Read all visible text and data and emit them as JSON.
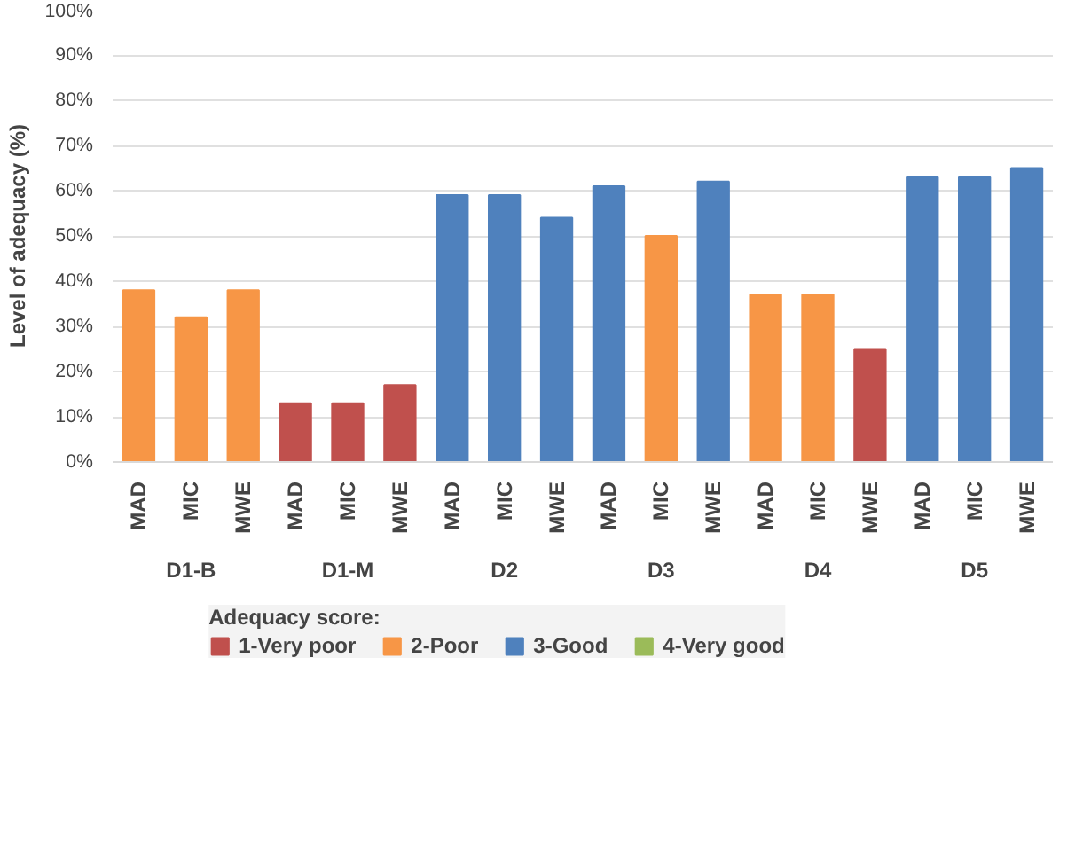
{
  "chart_data": {
    "type": "bar",
    "ylabel": "Level of adequacy (%)",
    "legend_title": "Adequacy score:",
    "legend": "bottom",
    "grid": "y",
    "categories": [
      "MAD",
      "MIC",
      "MWE",
      "MAD",
      "MIC",
      "MWE",
      "MAD",
      "MIC",
      "MWE",
      "MAD",
      "MIC",
      "MWE",
      "MAD",
      "MIC",
      "MWE",
      "MAD",
      "MIC",
      "MWE"
    ],
    "annotations": [
      "D1-B",
      "D1-M",
      "D2",
      "D3",
      "D4",
      "D5"
    ],
    "ylim": [
      0,
      100
    ],
    "yticks": [
      {
        "value": 0,
        "label": "0%"
      },
      {
        "value": 10,
        "label": "10%"
      },
      {
        "value": 20,
        "label": "20%"
      },
      {
        "value": 30,
        "label": "30%"
      },
      {
        "value": 40,
        "label": "40%"
      },
      {
        "value": 50,
        "label": "50%"
      },
      {
        "value": 60,
        "label": "60%"
      },
      {
        "value": 70,
        "label": "70%"
      },
      {
        "value": 80,
        "label": "80%"
      },
      {
        "value": 90,
        "label": "90%"
      },
      {
        "value": 100,
        "label": "100%"
      }
    ],
    "series": [
      {
        "name": "1-Very poor",
        "color": "#c0504d",
        "values": [
          null,
          null,
          null,
          13,
          13,
          17,
          null,
          null,
          null,
          null,
          null,
          null,
          null,
          null,
          25,
          null,
          null,
          null
        ]
      },
      {
        "name": "2-Poor",
        "color": "#f79646",
        "values": [
          38,
          32,
          38,
          null,
          null,
          null,
          null,
          null,
          null,
          null,
          50,
          null,
          37,
          37,
          null,
          null,
          null,
          null
        ]
      },
      {
        "name": "3-Good",
        "color": "#4f81bd",
        "values": [
          null,
          null,
          null,
          null,
          null,
          null,
          59,
          59,
          54,
          61,
          null,
          62,
          null,
          null,
          null,
          63,
          63,
          65
        ]
      },
      {
        "name": "4-Very good",
        "color": "#9bbb59",
        "values": [
          null,
          null,
          null,
          null,
          null,
          null,
          null,
          null,
          null,
          null,
          null,
          null,
          null,
          null,
          null,
          null,
          null,
          null
        ]
      }
    ]
  }
}
